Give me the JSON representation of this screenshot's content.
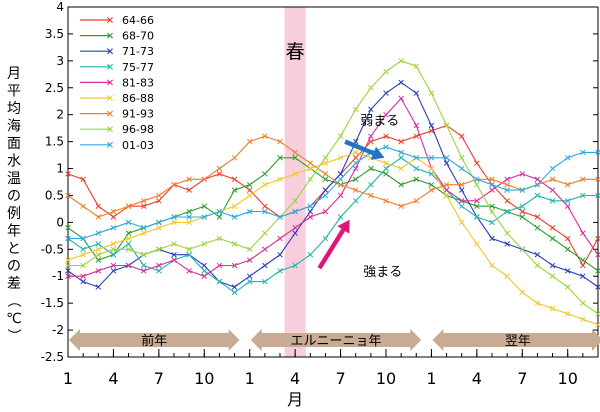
{
  "chart_data": {
    "type": "line",
    "ylabel": "月平均海面水温の例年との差（℃）",
    "xlabel": "月",
    "ylim": [
      -2.5,
      4
    ],
    "yticks": [
      -2.5,
      -2,
      -1.5,
      -1,
      -0.5,
      0,
      0.5,
      1,
      1.5,
      2,
      2.5,
      3,
      3.5,
      4
    ],
    "ytick_labels": [
      "-2.5",
      "-2",
      "-1.5",
      "-1",
      "-0.5",
      "0",
      "0.5",
      "1",
      "1.5",
      "2",
      "2.5",
      "3",
      "3.5",
      "4"
    ],
    "month_count": 36,
    "xtick_months": [
      1,
      4,
      7,
      10,
      13,
      16,
      19,
      22,
      25,
      28,
      31,
      34
    ],
    "xtick_labels": [
      "1",
      "4",
      "7",
      "10",
      "1",
      "4",
      "7",
      "10",
      "1",
      "4",
      "7",
      "10"
    ],
    "legend_position": "top-left",
    "periods": [
      {
        "label": "前年",
        "start": 1,
        "end": 12
      },
      {
        "label": "エルニーニョ年",
        "start": 13,
        "end": 24
      },
      {
        "label": "翌年",
        "start": 25,
        "end": 36
      }
    ],
    "spring": {
      "label": "春",
      "start": 15.3,
      "end": 16.7
    },
    "annotations": [
      {
        "text": "弱まる",
        "x": 20.3,
        "y": 1.9,
        "arrow_from": [
          19.3,
          1.5
        ],
        "arrow_to": [
          21.9,
          1.2
        ],
        "color": "#1f77c4"
      },
      {
        "text": "強まる",
        "x": 20.5,
        "y": -0.9,
        "arrow_from": [
          17.6,
          -0.85
        ],
        "arrow_to": [
          19.6,
          0.05
        ],
        "color": "#e0157a"
      }
    ],
    "series": [
      {
        "name": "64-66",
        "color": "#e8402e",
        "values": [
          0.9,
          0.8,
          0.3,
          0.1,
          0.3,
          0.3,
          0.4,
          0.7,
          0.6,
          0.8,
          0.9,
          0.8,
          0.6,
          0.3,
          0.1,
          0.2,
          0.3,
          0.6,
          0.9,
          1.2,
          1.5,
          1.6,
          1.5,
          1.6,
          1.7,
          1.8,
          1.6,
          1.1,
          0.7,
          0.4,
          0.2,
          0.1,
          -0.1,
          -0.3,
          -0.8,
          -0.3
        ]
      },
      {
        "name": "68-70",
        "color": "#2ca02c",
        "values": [
          -0.1,
          -0.3,
          -0.7,
          -0.6,
          -0.2,
          -0.1,
          0.0,
          0.1,
          0.2,
          0.3,
          0.1,
          0.6,
          0.7,
          0.9,
          1.2,
          1.2,
          1.0,
          0.8,
          0.7,
          0.8,
          1.0,
          0.9,
          0.7,
          0.8,
          0.7,
          0.5,
          0.4,
          0.3,
          0.3,
          0.2,
          0.1,
          -0.1,
          -0.3,
          -0.5,
          -0.7,
          -0.9
        ]
      },
      {
        "name": "71-73",
        "color": "#2d3fb8",
        "values": [
          -0.9,
          -1.1,
          -1.2,
          -0.9,
          -0.8,
          -0.6,
          -0.5,
          -0.6,
          -0.6,
          -0.8,
          -1.1,
          -1.2,
          -1.0,
          -0.8,
          -0.6,
          -0.2,
          0.2,
          0.6,
          0.9,
          1.5,
          2.1,
          2.4,
          2.6,
          2.4,
          1.8,
          1.1,
          0.6,
          0.1,
          -0.3,
          -0.4,
          -0.5,
          -0.6,
          -0.8,
          -0.9,
          -1.0,
          -1.2
        ]
      },
      {
        "name": "75-77",
        "color": "#1fb5b0",
        "values": [
          -0.3,
          -0.5,
          -0.4,
          -0.6,
          -0.4,
          -0.8,
          -0.9,
          -0.7,
          -0.6,
          -0.9,
          -1.1,
          -1.3,
          -1.1,
          -1.1,
          -0.9,
          -0.8,
          -0.6,
          -0.3,
          0.1,
          0.4,
          0.7,
          1.0,
          1.2,
          1.0,
          0.9,
          0.6,
          0.3,
          0.1,
          0.0,
          0.2,
          0.3,
          0.5,
          0.4,
          0.4,
          0.5,
          0.5
        ]
      },
      {
        "name": "81-83",
        "color": "#d62f9a",
        "values": [
          -1.0,
          -1.0,
          -0.9,
          -0.8,
          -0.8,
          -0.9,
          -0.8,
          -0.7,
          -0.9,
          -1.0,
          -0.8,
          -0.8,
          -0.7,
          -0.5,
          -0.3,
          -0.1,
          0.1,
          0.2,
          0.5,
          1.0,
          1.6,
          2.0,
          2.3,
          1.8,
          1.0,
          0.6,
          0.4,
          0.4,
          0.6,
          0.8,
          0.9,
          0.8,
          0.6,
          0.3,
          -0.2,
          -0.6
        ]
      },
      {
        "name": "86-88",
        "color": "#f2c72a",
        "values": [
          -0.7,
          -0.6,
          -0.5,
          -0.4,
          -0.3,
          -0.2,
          -0.1,
          0.0,
          0.0,
          0.1,
          0.2,
          0.3,
          0.5,
          0.7,
          0.8,
          0.9,
          1.0,
          1.1,
          1.2,
          1.3,
          1.2,
          1.1,
          1.0,
          1.2,
          1.0,
          0.5,
          0.0,
          -0.4,
          -0.8,
          -1.0,
          -1.3,
          -1.5,
          -1.6,
          -1.7,
          -1.8,
          -1.9
        ]
      },
      {
        "name": "91-93",
        "color": "#f07d2a",
        "values": [
          0.5,
          0.3,
          0.1,
          0.2,
          0.3,
          0.4,
          0.5,
          0.7,
          0.8,
          0.8,
          1.0,
          1.2,
          1.5,
          1.6,
          1.5,
          1.3,
          1.1,
          0.9,
          0.7,
          0.6,
          0.5,
          0.4,
          0.3,
          0.4,
          0.6,
          0.7,
          0.7,
          0.8,
          0.8,
          0.7,
          0.6,
          0.7,
          0.8,
          0.7,
          0.8,
          0.8
        ]
      },
      {
        "name": "96-98",
        "color": "#9bd43a",
        "values": [
          -0.8,
          -0.8,
          -0.6,
          -0.5,
          -0.5,
          -0.6,
          -0.5,
          -0.4,
          -0.5,
          -0.4,
          -0.3,
          -0.4,
          -0.5,
          -0.2,
          0.1,
          0.4,
          0.8,
          1.2,
          1.6,
          2.1,
          2.5,
          2.8,
          3.0,
          2.9,
          2.4,
          1.8,
          1.2,
          0.7,
          0.2,
          -0.2,
          -0.5,
          -0.8,
          -1.0,
          -1.2,
          -1.5,
          -1.7
        ]
      },
      {
        "name": "01-03",
        "color": "#2ea8e0",
        "values": [
          -0.3,
          -0.3,
          -0.2,
          -0.1,
          0.0,
          -0.1,
          0.0,
          0.1,
          0.1,
          0.1,
          0.2,
          0.1,
          0.2,
          0.2,
          0.1,
          0.2,
          0.3,
          0.5,
          0.8,
          1.1,
          1.3,
          1.4,
          1.3,
          1.2,
          1.2,
          1.2,
          1.0,
          0.8,
          0.7,
          0.6,
          0.6,
          0.7,
          1.0,
          1.2,
          1.3,
          1.3
        ]
      }
    ]
  }
}
